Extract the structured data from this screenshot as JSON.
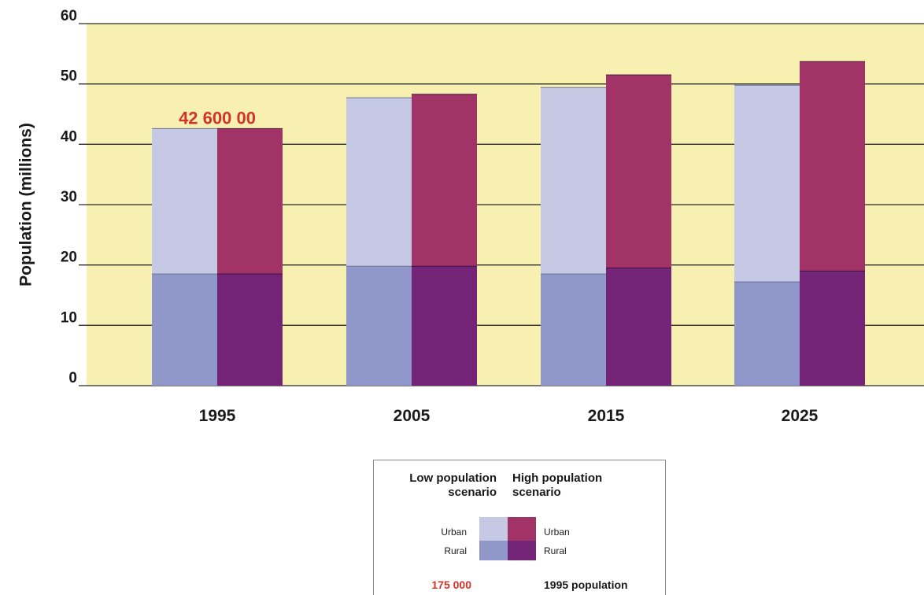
{
  "chart_data": {
    "type": "bar",
    "title": "",
    "xlabel": "",
    "ylabel": "Population (millions)",
    "ylim": [
      0,
      60
    ],
    "yticks": [
      "0",
      "10",
      "20",
      "30",
      "40",
      "50",
      "60"
    ],
    "categories": [
      "1995",
      "2005",
      "2015",
      "2025"
    ],
    "series": [
      {
        "name": "Low population scenario – Rural",
        "values": [
          18.5,
          19.8,
          18.5,
          17.2
        ]
      },
      {
        "name": "Low population scenario – Urban",
        "values": [
          24.1,
          27.9,
          30.9,
          32.6
        ]
      },
      {
        "name": "High population scenario – Rural",
        "values": [
          18.5,
          19.8,
          19.5,
          19.0
        ]
      },
      {
        "name": "High population scenario – Urban",
        "values": [
          24.1,
          28.5,
          32.0,
          34.7
        ]
      }
    ],
    "annotations": [
      {
        "category": "1995",
        "text": "42 600 00"
      }
    ],
    "grid": true,
    "legend_position": "bottom",
    "colors": {
      "plot_background": "#f7f0b0",
      "low_urban": "#c5c9e3",
      "low_rural": "#8f98c9",
      "high_urban": "#a13366",
      "high_rural": "#742477",
      "annotation": "#d1332b"
    }
  },
  "legend": {
    "low_heading_line1": "Low population",
    "low_heading_line2": "scenario",
    "high_heading_line1": "High population",
    "high_heading_line2": "scenario",
    "urban_left": "Urban",
    "rural_left": "Rural",
    "urban_right": "Urban",
    "rural_right": "Rural",
    "example_value": "175 000",
    "example_label": "1995 population"
  }
}
